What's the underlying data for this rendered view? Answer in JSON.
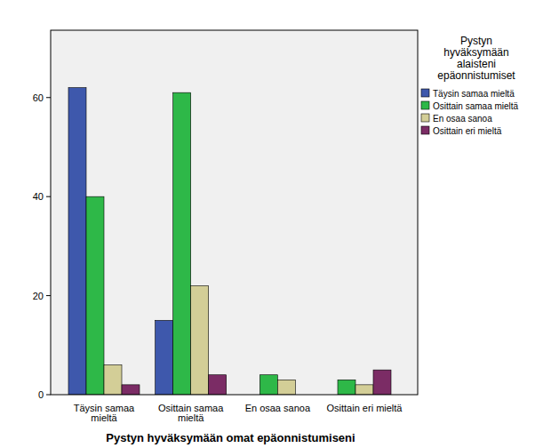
{
  "chart_data": {
    "type": "bar",
    "x_label": "Pystyn hyväksymään omat epäonnistumiseni",
    "legend_title": "Pystyn hyväksymään alaisteni epäonnistumiset",
    "categories": [
      "Täysin samaa mieltä",
      "Osittain samaa mieltä",
      "En osaa sanoa",
      "Osittain eri mieltä"
    ],
    "series": [
      {
        "name": "Täysin samaa mieltä",
        "color": "#3e58ac",
        "values": [
          62,
          15,
          null,
          null
        ]
      },
      {
        "name": "Osittain samaa mieltä",
        "color": "#2eb848",
        "values": [
          40,
          61,
          4,
          3
        ]
      },
      {
        "name": "En osaa sanoa",
        "color": "#d3ce97",
        "values": [
          6,
          22,
          3,
          2
        ]
      },
      {
        "name": "Osittain eri mieltä",
        "color": "#7b2c65",
        "values": [
          2,
          4,
          null,
          5
        ]
      }
    ],
    "ylim": [
      0,
      73.6
    ],
    "yticks": [
      0,
      20,
      40,
      60
    ],
    "grid": false,
    "legend": "right"
  }
}
